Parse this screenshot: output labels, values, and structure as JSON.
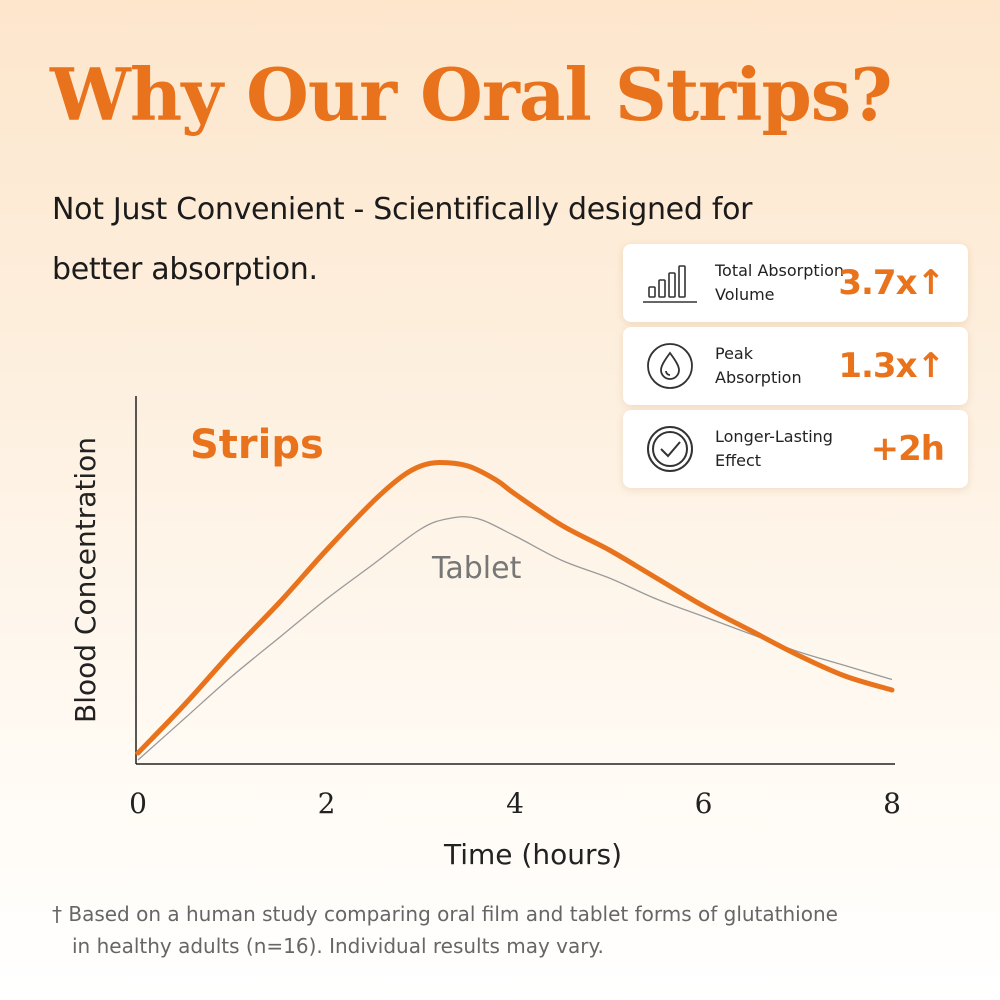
{
  "title": "Why Our Oral Strips?",
  "subtitle": "Not Just Convenient - Scientifically designed for better absorption.",
  "stats": [
    {
      "icon": "bar-chart-icon",
      "label_line1": "Total Absorption",
      "label_line2": "Volume",
      "value": "3.7x↑"
    },
    {
      "icon": "droplet-icon",
      "label_line1": "Peak",
      "label_line2": "Absorption",
      "value": "1.3x↑"
    },
    {
      "icon": "check-circle-icon",
      "label_line1": "Longer-Lasting",
      "label_line2": "Effect",
      "value": "+2h"
    }
  ],
  "chart_data": {
    "type": "line",
    "xlabel": "Time (hours)",
    "ylabel": "Blood Concentration",
    "xlim": [
      0,
      8
    ],
    "ylim": [
      0,
      1
    ],
    "x_ticks": [
      0,
      2,
      4,
      6,
      8
    ],
    "y_ticks_shown": false,
    "grid": false,
    "colors": {
      "strips": "#e8731c",
      "tablet": "#9a9a9a"
    },
    "series": [
      {
        "name": "Strips",
        "x": [
          0,
          0.5,
          1,
          1.5,
          2,
          2.5,
          2.8,
          3.0,
          3.2,
          3.5,
          3.8,
          4.0,
          4.5,
          5,
          5.5,
          6,
          6.5,
          7,
          7.5,
          8
        ],
        "y": [
          0.02,
          0.16,
          0.31,
          0.45,
          0.6,
          0.74,
          0.81,
          0.84,
          0.85,
          0.84,
          0.8,
          0.76,
          0.67,
          0.6,
          0.52,
          0.44,
          0.37,
          0.3,
          0.24,
          0.2
        ]
      },
      {
        "name": "Tablet",
        "x": [
          0,
          0.5,
          1,
          1.5,
          2,
          2.5,
          3.0,
          3.3,
          3.6,
          4.0,
          4.5,
          5,
          5.5,
          6,
          6.5,
          7,
          7.5,
          8
        ],
        "y": [
          0.0,
          0.12,
          0.24,
          0.35,
          0.46,
          0.56,
          0.66,
          0.69,
          0.69,
          0.64,
          0.57,
          0.52,
          0.46,
          0.41,
          0.36,
          0.31,
          0.27,
          0.23
        ]
      }
    ]
  },
  "footnote_line1": "† Based on a human study comparing oral film and tablet forms of glutathione",
  "footnote_line2": "in healthy adults (n=16). Individual results may vary."
}
